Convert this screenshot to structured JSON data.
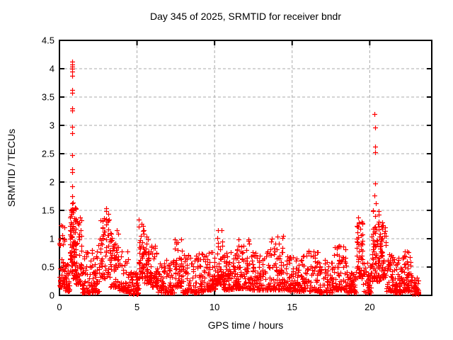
{
  "chart_data": {
    "type": "scatter",
    "title": "Day 345 of 2025, SRMTID for receiver bndr",
    "xlabel": "GPS time / hours",
    "ylabel": "SRMTID / TECUs",
    "xlim": [
      0,
      24
    ],
    "ylim": [
      0,
      4.5
    ],
    "xticks": [
      {
        "v": 0,
        "label": "0"
      },
      {
        "v": 5,
        "label": "5"
      },
      {
        "v": 10,
        "label": "10"
      },
      {
        "v": 15,
        "label": "15"
      },
      {
        "v": 20,
        "label": "20"
      }
    ],
    "yticks": [
      {
        "v": 0,
        "label": "0"
      },
      {
        "v": 0.5,
        "label": "0.5"
      },
      {
        "v": 1,
        "label": "1"
      },
      {
        "v": 1.5,
        "label": "1.5"
      },
      {
        "v": 2,
        "label": "2"
      },
      {
        "v": 2.5,
        "label": "2.5"
      },
      {
        "v": 3,
        "label": "3"
      },
      {
        "v": 3.5,
        "label": "3.5"
      },
      {
        "v": 4,
        "label": "4"
      },
      {
        "v": 4.5,
        "label": "4.5"
      }
    ],
    "grid": true,
    "grid_style": "dashed",
    "legend": false,
    "series_name": "SRMTID",
    "marker": {
      "shape": "plus",
      "color": "#ff0000",
      "size": 7
    },
    "colors": {
      "frame": "#000000",
      "grid": "#aaaaaa",
      "text": "#000000"
    },
    "seed": 1345,
    "notes": "Dense band 0.05-0.6 TECU across 0-23.2 h; vertical spike near 0.8 h reaching 4.1 and near 20.35 h reaching 3.2; data ends ~23.1 h.",
    "clusters": [
      [
        0.0,
        0.35,
        55,
        0.15,
        1.35,
        2.4,
        4
      ],
      [
        0.35,
        0.65,
        40,
        0.08,
        0.55,
        2.0,
        4
      ],
      [
        0.65,
        1.05,
        90,
        0.3,
        1.65,
        1.3,
        4
      ],
      [
        1.05,
        1.45,
        55,
        0.2,
        1.42,
        1.9,
        4
      ],
      [
        1.45,
        2.6,
        115,
        0.05,
        0.92,
        2.6,
        10
      ],
      [
        2.6,
        3.2,
        60,
        0.3,
        1.55,
        1.5,
        5
      ],
      [
        3.2,
        3.8,
        65,
        0.15,
        1.2,
        1.9,
        5
      ],
      [
        3.8,
        4.45,
        55,
        0.08,
        0.78,
        2.0,
        5
      ],
      [
        4.45,
        5.1,
        60,
        0.03,
        0.42,
        1.8,
        6
      ],
      [
        5.1,
        5.45,
        50,
        0.3,
        1.35,
        1.5,
        3
      ],
      [
        5.45,
        5.95,
        60,
        0.2,
        1.05,
        1.8,
        4
      ],
      [
        5.95,
        6.35,
        40,
        0.15,
        0.95,
        1.8,
        3
      ],
      [
        6.35,
        7.4,
        90,
        0.05,
        0.62,
        2.2,
        9
      ],
      [
        7.4,
        7.9,
        50,
        0.15,
        1.0,
        1.8,
        4
      ],
      [
        7.9,
        9.3,
        110,
        0.05,
        0.75,
        2.4,
        11
      ],
      [
        9.3,
        10.1,
        80,
        0.1,
        0.8,
        2.0,
        6
      ],
      [
        10.1,
        10.55,
        50,
        0.2,
        1.2,
        1.7,
        4
      ],
      [
        10.55,
        11.35,
        80,
        0.1,
        0.78,
        2.1,
        6
      ],
      [
        11.35,
        12.25,
        90,
        0.12,
        1.0,
        2.1,
        7
      ],
      [
        12.25,
        13.45,
        100,
        0.1,
        0.78,
        2.2,
        9
      ],
      [
        13.45,
        14.75,
        110,
        0.1,
        1.05,
        2.1,
        10
      ],
      [
        14.75,
        15.6,
        80,
        0.08,
        0.68,
        2.2,
        7
      ],
      [
        15.6,
        16.7,
        90,
        0.08,
        0.8,
        2.2,
        8
      ],
      [
        16.7,
        17.6,
        70,
        0.05,
        0.62,
        2.2,
        7
      ],
      [
        17.6,
        18.5,
        80,
        0.1,
        0.9,
        2.1,
        7
      ],
      [
        18.5,
        19.15,
        55,
        0.05,
        0.55,
        2.0,
        5
      ],
      [
        19.15,
        19.55,
        55,
        0.3,
        1.45,
        1.5,
        3
      ],
      [
        19.55,
        20.1,
        45,
        0.05,
        0.6,
        2.0,
        4
      ],
      [
        20.1,
        20.65,
        78,
        0.25,
        1.52,
        1.6,
        4
      ],
      [
        20.65,
        21.05,
        55,
        0.3,
        1.3,
        1.6,
        3
      ],
      [
        21.05,
        21.5,
        45,
        0.08,
        0.72,
        2.0,
        4
      ],
      [
        21.5,
        22.1,
        60,
        0.05,
        0.68,
        2.1,
        5
      ],
      [
        22.1,
        22.7,
        65,
        0.08,
        0.8,
        2.0,
        5
      ],
      [
        22.7,
        23.15,
        40,
        0.02,
        0.35,
        1.8,
        4
      ]
    ],
    "outlier_points": [
      [
        0.8,
        4.12
      ],
      [
        0.82,
        4.08
      ],
      [
        0.84,
        4.04
      ],
      [
        0.82,
        4.0
      ],
      [
        0.83,
        3.95
      ],
      [
        0.81,
        3.88
      ],
      [
        0.8,
        3.62
      ],
      [
        0.84,
        3.57
      ],
      [
        0.8,
        3.3
      ],
      [
        0.83,
        3.26
      ],
      [
        0.8,
        2.97
      ],
      [
        0.84,
        2.86
      ],
      [
        0.82,
        2.47
      ],
      [
        0.8,
        2.22
      ],
      [
        0.84,
        2.18
      ],
      [
        0.82,
        1.92
      ],
      [
        0.81,
        1.75
      ],
      [
        20.32,
        3.2
      ],
      [
        20.36,
        2.96
      ],
      [
        20.33,
        2.62
      ],
      [
        20.37,
        2.52
      ],
      [
        20.34,
        1.97
      ],
      [
        20.32,
        1.76
      ],
      [
        20.38,
        1.63
      ]
    ]
  }
}
